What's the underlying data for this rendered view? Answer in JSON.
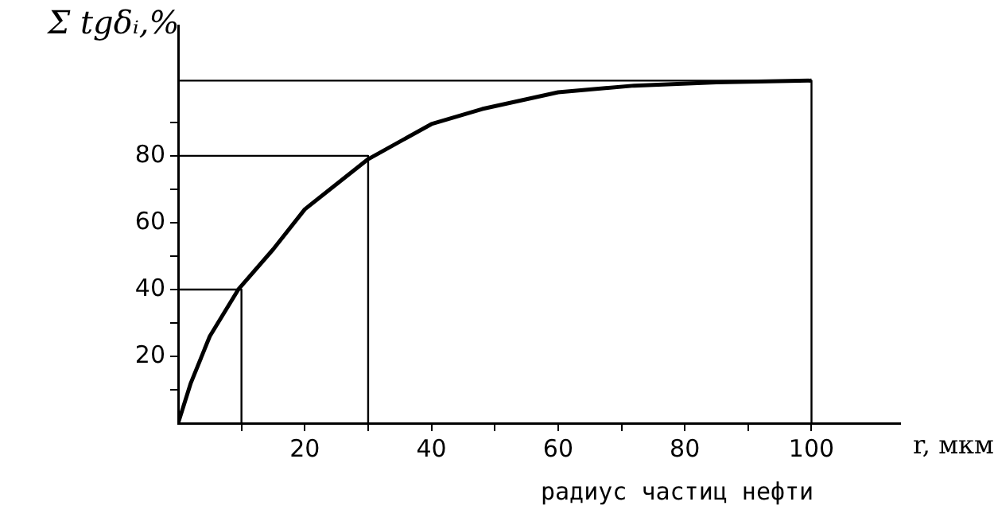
{
  "chart_data": {
    "type": "line",
    "xlabel": "r, мкм",
    "ylabel": "Σ tgδᵢ,%",
    "annotations": [
      "радиус частиц нефти"
    ],
    "xlim": [
      0,
      114
    ],
    "ylim": [
      0,
      119
    ],
    "xticks": [
      {
        "value": 10,
        "label": null
      },
      20,
      {
        "value": 30,
        "label": null
      },
      40,
      {
        "value": 50,
        "label": null
      },
      60,
      {
        "value": 70,
        "label": null
      },
      80,
      {
        "value": 90,
        "label": null
      },
      100
    ],
    "yticks": [
      {
        "value": 10,
        "label": null
      },
      20,
      {
        "value": 30,
        "label": null
      },
      40,
      {
        "value": 50,
        "label": null
      },
      60,
      {
        "value": 70,
        "label": null
      },
      80,
      {
        "value": 90,
        "label": null
      }
    ],
    "grid": false,
    "legend": false,
    "marker": "none",
    "line_style": "solid",
    "series": [
      {
        "color": "#000000",
        "x": [
          0,
          2,
          5,
          9.5,
          15,
          20,
          30,
          40,
          48,
          60,
          72,
          85,
          100
        ],
        "values": [
          0,
          12,
          26,
          40,
          52,
          64,
          79,
          89.5,
          94,
          99,
          101,
          102,
          102.5
        ]
      },
      {
        "color": "#000000",
        "x": [
          0,
          10,
          10
        ],
        "values": [
          40,
          40,
          0
        ]
      },
      {
        "color": "#000000",
        "x": [
          0,
          30,
          30
        ],
        "values": [
          80,
          80,
          0
        ]
      },
      {
        "color": "#000000",
        "x": [
          0,
          100,
          100
        ],
        "values": [
          102.5,
          102.5,
          0
        ]
      }
    ]
  }
}
